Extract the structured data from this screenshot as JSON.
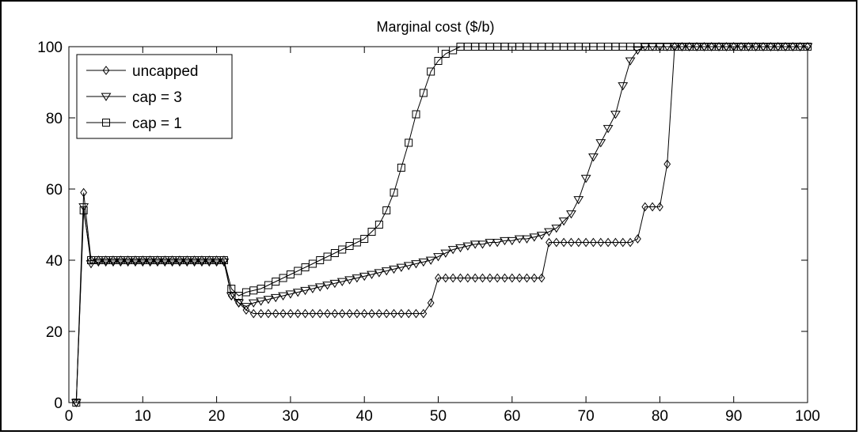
{
  "chart_data": {
    "type": "line",
    "title": "Marginal cost ($/b)",
    "xlabel": "",
    "ylabel": "",
    "xlim": [
      0,
      100
    ],
    "ylim": [
      0,
      100
    ],
    "xticks": [
      0,
      10,
      20,
      30,
      40,
      50,
      60,
      70,
      80,
      90,
      100
    ],
    "yticks": [
      0,
      20,
      40,
      60,
      80,
      100
    ],
    "grid": false,
    "legend_position": "top-left",
    "line_color": "#000000",
    "series": [
      {
        "name": "uncapped",
        "marker": "diamond",
        "points": [
          [
            1,
            0
          ],
          [
            2,
            59
          ],
          [
            3,
            40
          ],
          [
            4,
            40
          ],
          [
            5,
            40
          ],
          [
            6,
            40
          ],
          [
            7,
            40
          ],
          [
            8,
            40
          ],
          [
            9,
            40
          ],
          [
            10,
            40
          ],
          [
            11,
            40
          ],
          [
            12,
            40
          ],
          [
            13,
            40
          ],
          [
            14,
            40
          ],
          [
            15,
            40
          ],
          [
            16,
            40
          ],
          [
            17,
            40
          ],
          [
            18,
            40
          ],
          [
            19,
            40
          ],
          [
            20,
            40
          ],
          [
            21,
            40
          ],
          [
            22,
            30
          ],
          [
            23,
            28
          ],
          [
            24,
            26
          ],
          [
            25,
            25
          ],
          [
            26,
            25
          ],
          [
            27,
            25
          ],
          [
            28,
            25
          ],
          [
            29,
            25
          ],
          [
            30,
            25
          ],
          [
            31,
            25
          ],
          [
            32,
            25
          ],
          [
            33,
            25
          ],
          [
            34,
            25
          ],
          [
            35,
            25
          ],
          [
            36,
            25
          ],
          [
            37,
            25
          ],
          [
            38,
            25
          ],
          [
            39,
            25
          ],
          [
            40,
            25
          ],
          [
            41,
            25
          ],
          [
            42,
            25
          ],
          [
            43,
            25
          ],
          [
            44,
            25
          ],
          [
            45,
            25
          ],
          [
            46,
            25
          ],
          [
            47,
            25
          ],
          [
            48,
            25
          ],
          [
            49,
            28
          ],
          [
            50,
            35
          ],
          [
            51,
            35
          ],
          [
            52,
            35
          ],
          [
            53,
            35
          ],
          [
            54,
            35
          ],
          [
            55,
            35
          ],
          [
            56,
            35
          ],
          [
            57,
            35
          ],
          [
            58,
            35
          ],
          [
            59,
            35
          ],
          [
            60,
            35
          ],
          [
            61,
            35
          ],
          [
            62,
            35
          ],
          [
            63,
            35
          ],
          [
            64,
            35
          ],
          [
            65,
            45
          ],
          [
            66,
            45
          ],
          [
            67,
            45
          ],
          [
            68,
            45
          ],
          [
            69,
            45
          ],
          [
            70,
            45
          ],
          [
            71,
            45
          ],
          [
            72,
            45
          ],
          [
            73,
            45
          ],
          [
            74,
            45
          ],
          [
            75,
            45
          ],
          [
            76,
            45
          ],
          [
            77,
            46
          ],
          [
            78,
            55
          ],
          [
            79,
            55
          ],
          [
            80,
            55
          ],
          [
            81,
            67
          ],
          [
            82,
            100
          ],
          [
            83,
            100
          ],
          [
            84,
            100
          ],
          [
            85,
            100
          ],
          [
            86,
            100
          ],
          [
            87,
            100
          ],
          [
            88,
            100
          ],
          [
            89,
            100
          ],
          [
            90,
            100
          ],
          [
            91,
            100
          ],
          [
            92,
            100
          ],
          [
            93,
            100
          ],
          [
            94,
            100
          ],
          [
            95,
            100
          ],
          [
            96,
            100
          ],
          [
            97,
            100
          ],
          [
            98,
            100
          ],
          [
            99,
            100
          ],
          [
            100,
            100
          ]
        ]
      },
      {
        "name": "cap = 3",
        "marker": "triangle-down",
        "points": [
          [
            1,
            0
          ],
          [
            2,
            55
          ],
          [
            3,
            39
          ],
          [
            4,
            39.5
          ],
          [
            5,
            39.5
          ],
          [
            6,
            39.5
          ],
          [
            7,
            39.5
          ],
          [
            8,
            39.5
          ],
          [
            9,
            39.5
          ],
          [
            10,
            39.5
          ],
          [
            11,
            39.5
          ],
          [
            12,
            39.5
          ],
          [
            13,
            39.5
          ],
          [
            14,
            39.5
          ],
          [
            15,
            39.5
          ],
          [
            16,
            39.5
          ],
          [
            17,
            39.5
          ],
          [
            18,
            39.5
          ],
          [
            19,
            39.5
          ],
          [
            20,
            39.5
          ],
          [
            21,
            39.5
          ],
          [
            22,
            30
          ],
          [
            23,
            28
          ],
          [
            24,
            27
          ],
          [
            25,
            28
          ],
          [
            26,
            28.5
          ],
          [
            27,
            29
          ],
          [
            28,
            29.5
          ],
          [
            29,
            30
          ],
          [
            30,
            30.5
          ],
          [
            31,
            31
          ],
          [
            32,
            31.5
          ],
          [
            33,
            32
          ],
          [
            34,
            32.5
          ],
          [
            35,
            33
          ],
          [
            36,
            33.5
          ],
          [
            37,
            34
          ],
          [
            38,
            34.5
          ],
          [
            39,
            35
          ],
          [
            40,
            35.5
          ],
          [
            41,
            36
          ],
          [
            42,
            36.5
          ],
          [
            43,
            37
          ],
          [
            44,
            37.5
          ],
          [
            45,
            38
          ],
          [
            46,
            38.5
          ],
          [
            47,
            39
          ],
          [
            48,
            39.5
          ],
          [
            49,
            40
          ],
          [
            50,
            41
          ],
          [
            51,
            42
          ],
          [
            52,
            43
          ],
          [
            53,
            43.5
          ],
          [
            54,
            44
          ],
          [
            55,
            44.5
          ],
          [
            56,
            44.5
          ],
          [
            57,
            45
          ],
          [
            58,
            45
          ],
          [
            59,
            45.5
          ],
          [
            60,
            45.5
          ],
          [
            61,
            46
          ],
          [
            62,
            46
          ],
          [
            63,
            46.5
          ],
          [
            64,
            47
          ],
          [
            65,
            48
          ],
          [
            66,
            49
          ],
          [
            67,
            51
          ],
          [
            68,
            53
          ],
          [
            69,
            57
          ],
          [
            70,
            63
          ],
          [
            71,
            69
          ],
          [
            72,
            73
          ],
          [
            73,
            77
          ],
          [
            74,
            81
          ],
          [
            75,
            89
          ],
          [
            76,
            96
          ],
          [
            77,
            99
          ],
          [
            78,
            100
          ],
          [
            79,
            100
          ],
          [
            80,
            100
          ],
          [
            81,
            100
          ],
          [
            82,
            100
          ],
          [
            83,
            100
          ],
          [
            84,
            100
          ],
          [
            85,
            100
          ],
          [
            86,
            100
          ],
          [
            87,
            100
          ],
          [
            88,
            100
          ],
          [
            89,
            100
          ],
          [
            90,
            100
          ],
          [
            91,
            100
          ],
          [
            92,
            100
          ],
          [
            93,
            100
          ],
          [
            94,
            100
          ],
          [
            95,
            100
          ],
          [
            96,
            100
          ],
          [
            97,
            100
          ],
          [
            98,
            100
          ],
          [
            99,
            100
          ],
          [
            100,
            100
          ]
        ]
      },
      {
        "name": "cap = 1",
        "marker": "square",
        "points": [
          [
            1,
            0
          ],
          [
            2,
            54
          ],
          [
            3,
            40
          ],
          [
            4,
            40
          ],
          [
            5,
            40
          ],
          [
            6,
            40
          ],
          [
            7,
            40
          ],
          [
            8,
            40
          ],
          [
            9,
            40
          ],
          [
            10,
            40
          ],
          [
            11,
            40
          ],
          [
            12,
            40
          ],
          [
            13,
            40
          ],
          [
            14,
            40
          ],
          [
            15,
            40
          ],
          [
            16,
            40
          ],
          [
            17,
            40
          ],
          [
            18,
            40
          ],
          [
            19,
            40
          ],
          [
            20,
            40
          ],
          [
            21,
            40
          ],
          [
            22,
            32
          ],
          [
            23,
            30
          ],
          [
            24,
            31
          ],
          [
            25,
            31.5
          ],
          [
            26,
            32
          ],
          [
            27,
            33
          ],
          [
            28,
            34
          ],
          [
            29,
            35
          ],
          [
            30,
            36
          ],
          [
            31,
            37
          ],
          [
            32,
            38
          ],
          [
            33,
            39
          ],
          [
            34,
            40
          ],
          [
            35,
            41
          ],
          [
            36,
            42
          ],
          [
            37,
            43
          ],
          [
            38,
            44
          ],
          [
            39,
            45
          ],
          [
            40,
            46
          ],
          [
            41,
            48
          ],
          [
            42,
            50
          ],
          [
            43,
            54
          ],
          [
            44,
            59
          ],
          [
            45,
            66
          ],
          [
            46,
            73
          ],
          [
            47,
            81
          ],
          [
            48,
            87
          ],
          [
            49,
            93
          ],
          [
            50,
            96
          ],
          [
            51,
            98
          ],
          [
            52,
            99
          ],
          [
            53,
            100
          ],
          [
            54,
            100
          ],
          [
            55,
            100
          ],
          [
            56,
            100
          ],
          [
            57,
            100
          ],
          [
            58,
            100
          ],
          [
            59,
            100
          ],
          [
            60,
            100
          ],
          [
            61,
            100
          ],
          [
            62,
            100
          ],
          [
            63,
            100
          ],
          [
            64,
            100
          ],
          [
            65,
            100
          ],
          [
            66,
            100
          ],
          [
            67,
            100
          ],
          [
            68,
            100
          ],
          [
            69,
            100
          ],
          [
            70,
            100
          ],
          [
            71,
            100
          ],
          [
            72,
            100
          ],
          [
            73,
            100
          ],
          [
            74,
            100
          ],
          [
            75,
            100
          ],
          [
            76,
            100
          ],
          [
            77,
            100
          ],
          [
            78,
            100
          ],
          [
            79,
            100
          ],
          [
            80,
            100
          ],
          [
            81,
            100
          ],
          [
            82,
            100
          ],
          [
            83,
            100
          ],
          [
            84,
            100
          ],
          [
            85,
            100
          ],
          [
            86,
            100
          ],
          [
            87,
            100
          ],
          [
            88,
            100
          ],
          [
            89,
            100
          ],
          [
            90,
            100
          ],
          [
            91,
            100
          ],
          [
            92,
            100
          ],
          [
            93,
            100
          ],
          [
            94,
            100
          ],
          [
            95,
            100
          ],
          [
            96,
            100
          ],
          [
            97,
            100
          ],
          [
            98,
            100
          ],
          [
            99,
            100
          ],
          [
            100,
            100
          ]
        ]
      }
    ]
  }
}
